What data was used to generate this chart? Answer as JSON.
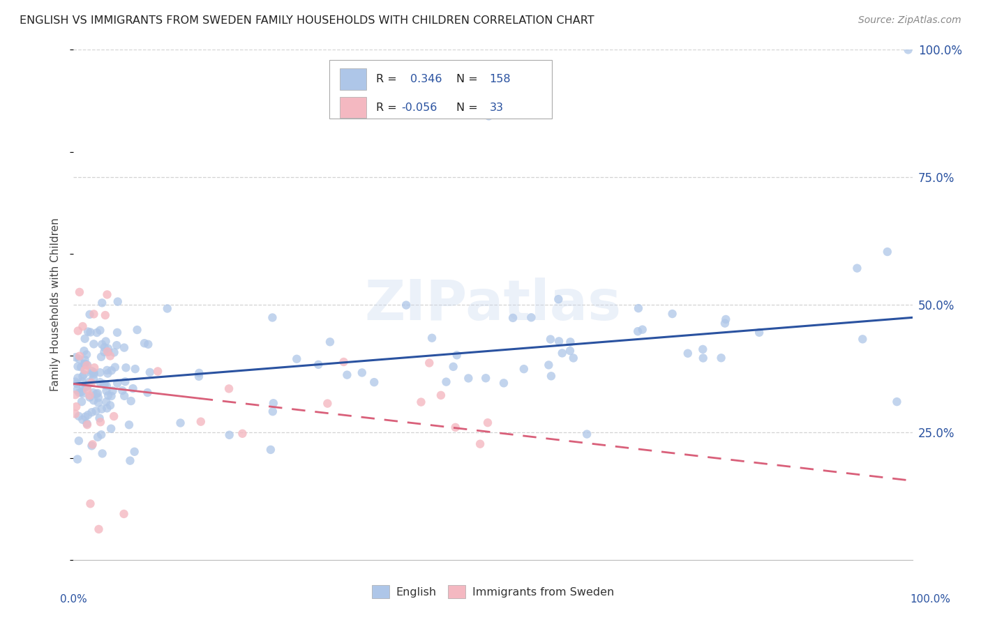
{
  "title": "ENGLISH VS IMMIGRANTS FROM SWEDEN FAMILY HOUSEHOLDS WITH CHILDREN CORRELATION CHART",
  "source": "Source: ZipAtlas.com",
  "ylabel": "Family Households with Children",
  "bottom_legend": [
    "English",
    "Immigrants from Sweden"
  ],
  "english_color": "#aec6e8",
  "immigrant_color": "#f4b8c1",
  "trend_english_color": "#2a52a0",
  "trend_immigrant_color": "#d9607a",
  "watermark_color": "#c8d8ee",
  "watermark_alpha": 0.35,
  "background_color": "#ffffff",
  "grid_color": "#c8c8c8",
  "legend_r1": "0.346",
  "legend_n1": "158",
  "legend_r2": "-0.056",
  "legend_n2": "33",
  "xlim": [
    0.0,
    1.0
  ],
  "ylim": [
    0.0,
    1.0
  ],
  "eng_trend_start_y": 0.345,
  "eng_trend_end_y": 0.475,
  "imm_trend_start_y": 0.345,
  "imm_trend_end_y": 0.155
}
